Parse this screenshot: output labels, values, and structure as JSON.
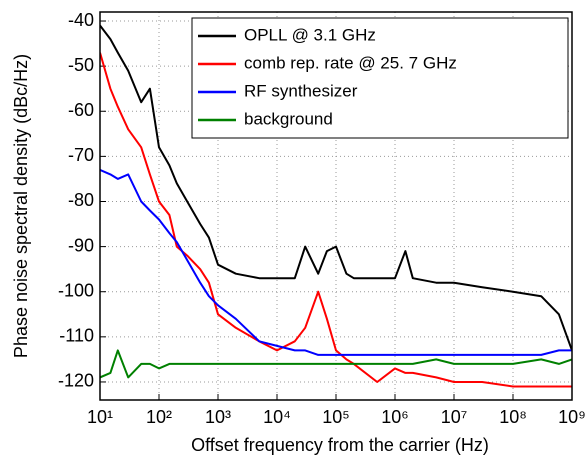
{
  "chart_data": {
    "type": "line",
    "xlabel": "Offset frequency from the carrier (Hz)",
    "ylabel": "Phase noise spectral density (dBc/Hz)",
    "xscale": "log",
    "grid": true,
    "legend": "upper right",
    "x": [
      10,
      15,
      20,
      30,
      50,
      70,
      100,
      150,
      200,
      300,
      500,
      700,
      1000,
      2000,
      5000,
      10000,
      20000,
      30000,
      50000,
      70000,
      100000,
      150000,
      200000,
      500000,
      1000000,
      1500000,
      2000000,
      5000000,
      10000000,
      30000000,
      100000000,
      300000000,
      600000000,
      1000000000
    ],
    "series": [
      {
        "name": "OPLL @ 3.1 GHz",
        "color": "#000000",
        "values": [
          -41,
          -44,
          -47,
          -51,
          -58,
          -55,
          -68,
          -72,
          -76,
          -80,
          -85,
          -88,
          -94,
          -96,
          -97,
          -97,
          -97,
          -90,
          -96,
          -91,
          -90,
          -96,
          -97,
          -97,
          -97,
          -91,
          -97,
          -98,
          -98,
          -99,
          -100,
          -101,
          -105,
          -113
        ]
      },
      {
        "name": "comb rep. rate @ 25. 7 GHz",
        "color": "#ff0000",
        "values": [
          -47,
          -55,
          -59,
          -64,
          -68,
          -74,
          -80,
          -83,
          -90,
          -92,
          -95,
          -98,
          -105,
          -108,
          -111,
          -113,
          -111,
          -108,
          -100,
          -106,
          -113,
          -115,
          -116,
          -120,
          -117,
          -118,
          -118,
          -119,
          -120,
          -120,
          -121,
          -121,
          -121,
          -121
        ]
      },
      {
        "name": "RF synthesizer",
        "color": "#0000ff",
        "values": [
          -73,
          -74,
          -75,
          -74,
          -80,
          -82,
          -84,
          -87,
          -89,
          -93,
          -98,
          -101,
          -103,
          -106,
          -111,
          -112,
          -113,
          -113,
          -114,
          -114,
          -114,
          -114,
          -114,
          -114,
          -114,
          -114,
          -114,
          -114,
          -114,
          -114,
          -114,
          -114,
          -113,
          -113
        ]
      },
      {
        "name": "background",
        "color": "#008000",
        "values": [
          -119,
          -118,
          -113,
          -119,
          -116,
          -116,
          -117,
          -116,
          -116,
          -116,
          -116,
          -116,
          -116,
          -116,
          -116,
          -116,
          -116,
          -116,
          -116,
          -116,
          -116,
          -116,
          -116,
          -116,
          -116,
          -116,
          -116,
          -115,
          -116,
          -116,
          -116,
          -115,
          -116,
          -115
        ]
      }
    ],
    "xlim": [
      10,
      1000000000
    ],
    "xticks": [
      {
        "value": 10,
        "label": "10¹"
      },
      {
        "value": 100,
        "label": "10²"
      },
      {
        "value": 1000,
        "label": "10³"
      },
      {
        "value": 10000,
        "label": "10⁴"
      },
      {
        "value": 100000,
        "label": "10⁵"
      },
      {
        "value": 1000000,
        "label": "10⁶"
      },
      {
        "value": 10000000,
        "label": "10⁷"
      },
      {
        "value": 100000000,
        "label": "10⁸"
      },
      {
        "value": 1000000000,
        "label": "10⁹"
      }
    ],
    "ylim": [
      -124,
      -38
    ],
    "yticks": [
      -40,
      -50,
      -60,
      -70,
      -80,
      -90,
      -100,
      -110,
      -120
    ]
  }
}
